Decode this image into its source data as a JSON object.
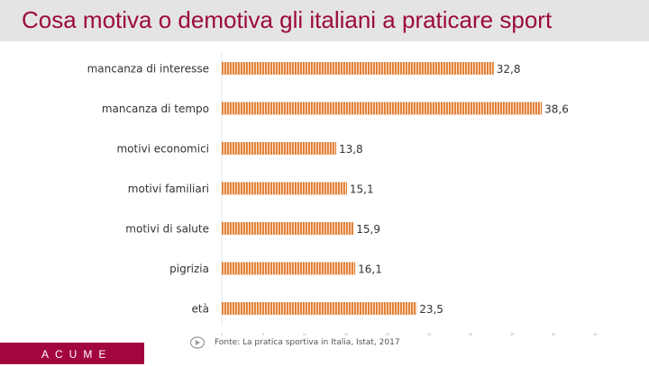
{
  "title": "Cosa motiva o demotiva gli italiani a praticare sport",
  "source": "Fonte: La pratica sportiva in Italia, Istat, 2017",
  "logo": "ACUME",
  "colors": {
    "bar": "#e07a2c",
    "title": "#9c0a3c",
    "logo_bg": "#a3063f"
  },
  "chart_data": {
    "type": "bar",
    "orientation": "horizontal",
    "categories": [
      "mancanza di interesse",
      "mancanza di tempo",
      "motivi economici",
      "motivi familiari",
      "motivi di salute",
      "pigrizia",
      "età"
    ],
    "values": [
      32.8,
      38.6,
      13.8,
      15.1,
      15.9,
      16.1,
      23.5
    ],
    "value_labels": [
      "32,8",
      "38,6",
      "13,8",
      "15,1",
      "15,9",
      "16,1",
      "23,5"
    ],
    "xlim": [
      0,
      45
    ],
    "xticks": [
      0,
      5,
      10,
      15,
      20,
      25,
      30,
      35,
      40,
      45
    ],
    "grid": false,
    "pattern": "vertical-stripes"
  }
}
